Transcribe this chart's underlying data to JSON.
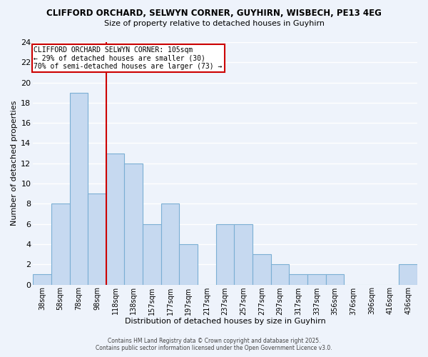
{
  "title_line1": "CLIFFORD ORCHARD, SELWYN CORNER, GUYHIRN, WISBECH, PE13 4EG",
  "title_line2": "Size of property relative to detached houses in Guyhirn",
  "xlabel": "Distribution of detached houses by size in Guyhirn",
  "ylabel": "Number of detached properties",
  "bar_labels": [
    "38sqm",
    "58sqm",
    "78sqm",
    "98sqm",
    "118sqm",
    "138sqm",
    "157sqm",
    "177sqm",
    "197sqm",
    "217sqm",
    "237sqm",
    "257sqm",
    "277sqm",
    "297sqm",
    "317sqm",
    "337sqm",
    "356sqm",
    "376sqm",
    "396sqm",
    "416sqm",
    "436sqm"
  ],
  "bar_values": [
    1,
    8,
    19,
    9,
    13,
    12,
    6,
    8,
    4,
    0,
    6,
    6,
    3,
    2,
    1,
    1,
    1,
    0,
    0,
    0,
    2
  ],
  "bar_color": "#c6d9f0",
  "bar_edge_color": "#7bafd4",
  "vline_x": 3.5,
  "vline_color": "#cc0000",
  "annotation_title": "CLIFFORD ORCHARD SELWYN CORNER: 105sqm",
  "annotation_line2": "← 29% of detached houses are smaller (30)",
  "annotation_line3": "70% of semi-detached houses are larger (73) →",
  "annotation_box_color": "#ffffff",
  "annotation_box_edge": "#cc0000",
  "ylim": [
    0,
    24
  ],
  "yticks": [
    0,
    2,
    4,
    6,
    8,
    10,
    12,
    14,
    16,
    18,
    20,
    22,
    24
  ],
  "background_color": "#eef3fb",
  "grid_color": "#ffffff",
  "footer_line1": "Contains HM Land Registry data © Crown copyright and database right 2025.",
  "footer_line2": "Contains public sector information licensed under the Open Government Licence v3.0."
}
